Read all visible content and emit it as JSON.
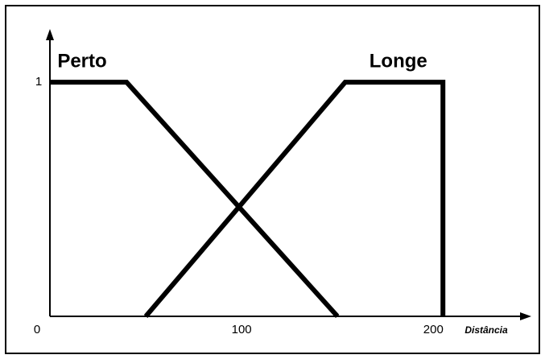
{
  "chart_data": {
    "type": "line",
    "xlabel": "Distância",
    "series": [
      {
        "name": "Perto",
        "color": "#000000",
        "x": [
          0,
          40,
          150
        ],
        "values": [
          1,
          1,
          0
        ]
      },
      {
        "name": "Longe",
        "color": "#000000",
        "x": [
          50,
          154,
          205,
          205
        ],
        "values": [
          0,
          1,
          1,
          0
        ]
      }
    ],
    "xlim": [
      0,
      249
    ],
    "ylim": [
      0,
      1.2
    ],
    "xticks": [
      0,
      100,
      200
    ],
    "yticks": [
      1
    ],
    "grid": false
  }
}
